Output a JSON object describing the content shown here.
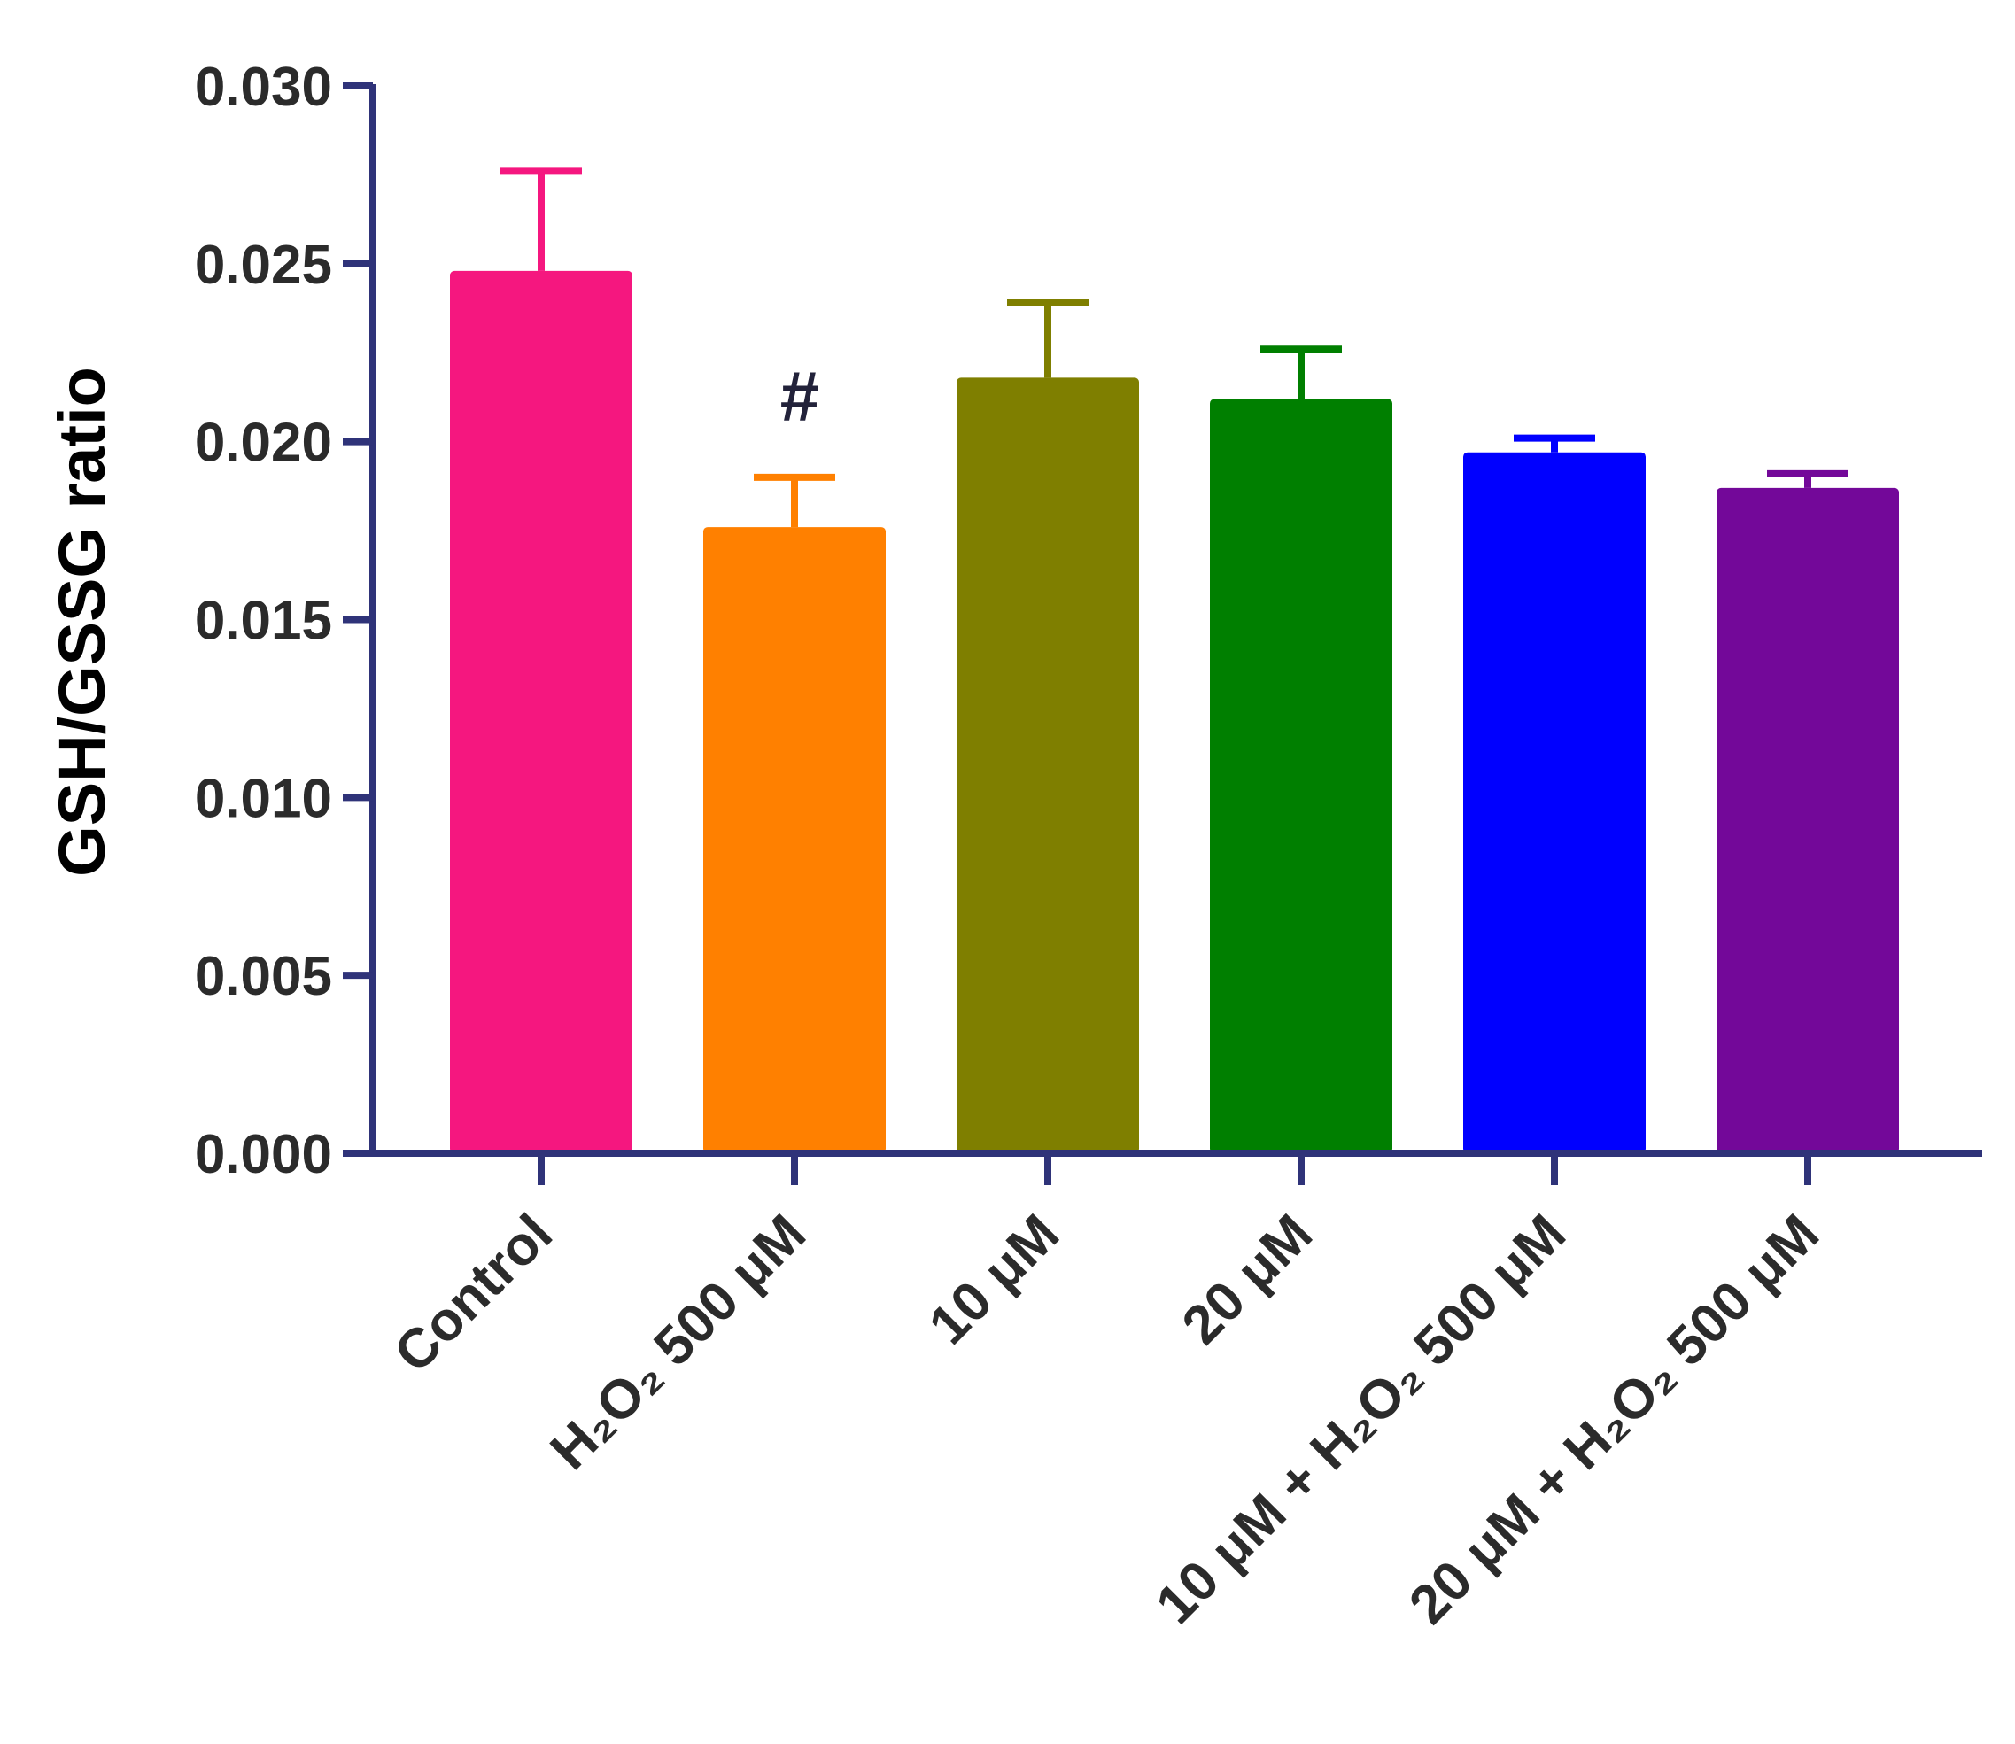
{
  "chart_data": {
    "type": "bar",
    "title": "",
    "xlabel": "",
    "ylabel": "GSH/GSSG ratio",
    "ylim": [
      0,
      0.03
    ],
    "y_ticks": [
      "0.000",
      "0.005",
      "0.010",
      "0.015",
      "0.020",
      "0.025",
      "0.030"
    ],
    "grid": false,
    "categories": [
      "Control",
      "H₂O₂ 500 μM",
      "10 μM",
      "20 μM",
      "10 μM + H₂O₂ 500 μM",
      "20 μM + H₂O₂ 500 μM"
    ],
    "values": [
      0.0248,
      0.0176,
      0.0218,
      0.0212,
      0.0197,
      0.0187
    ],
    "errors": [
      0.0028,
      0.0014,
      0.0021,
      0.0014,
      0.0004,
      0.0004
    ],
    "colors": [
      "#f5177f",
      "#ff8000",
      "#7f7f00",
      "#007f00",
      "#0000ff",
      "#730899"
    ],
    "axis_color": "#2f3379",
    "annotations": [
      {
        "category_index": 1,
        "text": "#"
      }
    ]
  }
}
